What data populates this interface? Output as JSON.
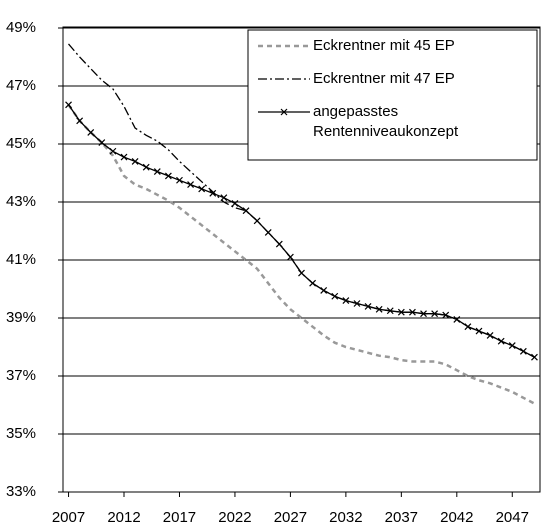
{
  "chart_data": {
    "type": "line",
    "x": [
      2007,
      2008,
      2009,
      2010,
      2011,
      2012,
      2013,
      2014,
      2015,
      2016,
      2017,
      2018,
      2019,
      2020,
      2021,
      2022,
      2023,
      2024,
      2025,
      2026,
      2027,
      2028,
      2029,
      2030,
      2031,
      2032,
      2033,
      2034,
      2035,
      2036,
      2037,
      2038,
      2039,
      2040,
      2041,
      2042,
      2043,
      2044,
      2045,
      2046,
      2047,
      2048,
      2049
    ],
    "xlim": [
      2006.5,
      2049.5
    ],
    "xticks": [
      2007,
      2012,
      2017,
      2022,
      2027,
      2032,
      2037,
      2042,
      2047
    ],
    "ylim": [
      33,
      49
    ],
    "yticks": [
      {
        "value": 33,
        "label": "33%"
      },
      {
        "value": 35,
        "label": "35%"
      },
      {
        "value": 37,
        "label": "37%"
      },
      {
        "value": 39,
        "label": "39%"
      },
      {
        "value": 41,
        "label": "41%"
      },
      {
        "value": 43,
        "label": "43%"
      },
      {
        "value": 45,
        "label": "45%"
      },
      {
        "value": 47,
        "label": "47%"
      },
      {
        "value": 49,
        "label": "49%"
      }
    ],
    "grid": true,
    "legend": "top-right",
    "series": [
      {
        "name": "Eckrentner mit 45 EP",
        "color": "#999999",
        "style": "dashed",
        "values": [
          46.35,
          45.8,
          45.4,
          45.05,
          44.6,
          43.9,
          43.6,
          43.45,
          43.25,
          43.05,
          42.8,
          42.5,
          42.2,
          41.9,
          41.6,
          41.3,
          41.0,
          40.7,
          40.2,
          39.7,
          39.3,
          39.0,
          38.7,
          38.4,
          38.15,
          38.0,
          37.9,
          37.8,
          37.7,
          37.65,
          37.55,
          37.5,
          37.5,
          37.5,
          37.4,
          37.2,
          37.0,
          36.85,
          36.75,
          36.6,
          36.45,
          36.25,
          36.05
        ]
      },
      {
        "name": "Eckrentner mit 47 EP",
        "color": "#000000",
        "style": "dashdot",
        "values": [
          48.45,
          48.0,
          47.6,
          47.2,
          46.9,
          46.3,
          45.55,
          45.3,
          45.1,
          44.8,
          44.4,
          44.05,
          43.7,
          43.35,
          43.0,
          42.8,
          42.7,
          42.35,
          41.95,
          41.55,
          41.1,
          40.55,
          40.2,
          39.95,
          39.75,
          39.6,
          39.5,
          39.4,
          39.3,
          39.25,
          39.2,
          39.2,
          39.15,
          39.15,
          39.1,
          38.95,
          38.7,
          38.55,
          38.4,
          38.2,
          38.05,
          37.85,
          37.65
        ]
      },
      {
        "name": "angepasstes Rentenniveaukonzept",
        "color": "#000000",
        "style": "solid",
        "marker": "x",
        "values": [
          46.35,
          45.8,
          45.4,
          45.05,
          44.75,
          44.55,
          44.4,
          44.2,
          44.05,
          43.9,
          43.75,
          43.6,
          43.45,
          43.3,
          43.15,
          42.95,
          42.7,
          42.35,
          41.95,
          41.55,
          41.1,
          40.55,
          40.2,
          39.95,
          39.75,
          39.6,
          39.5,
          39.4,
          39.3,
          39.25,
          39.2,
          39.2,
          39.15,
          39.15,
          39.1,
          38.95,
          38.7,
          38.55,
          38.4,
          38.2,
          38.05,
          37.85,
          37.65
        ]
      }
    ]
  }
}
